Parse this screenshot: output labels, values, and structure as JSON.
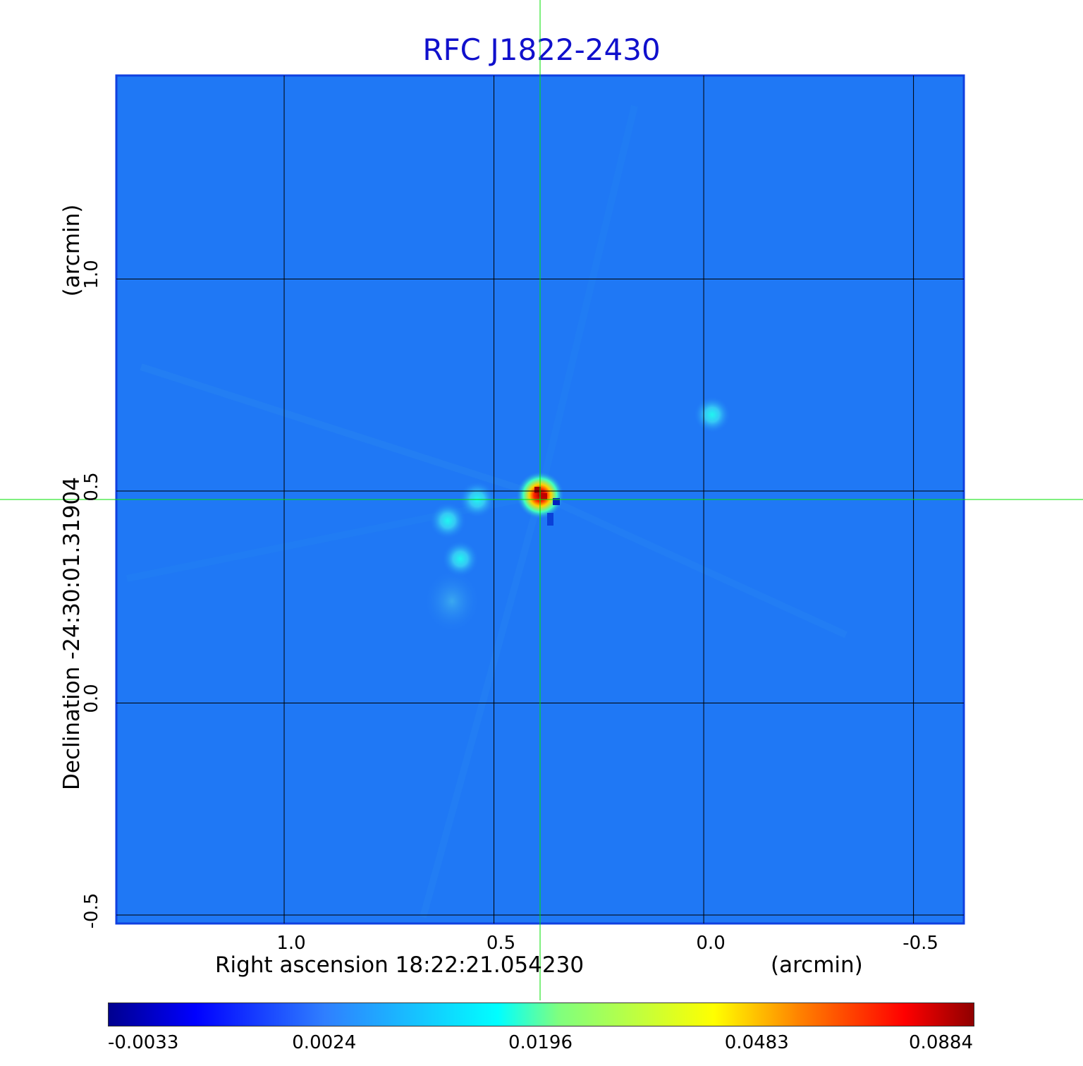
{
  "chart_data": {
    "type": "heatmap",
    "title": "RFC J1822-2430",
    "xlabel": "Right ascension  18:22:21.054230",
    "xunit": "(arcmin)",
    "ylabel": "Declination  -24:30:01.31904",
    "yunit": "(arcmin)",
    "x_ticks": [
      "1.0",
      "0.5",
      "0.0",
      "-0.5"
    ],
    "y_ticks": [
      "1.0",
      "0.5",
      "0.0",
      "-0.5"
    ],
    "xlim": [
      1.4,
      -0.62
    ],
    "ylim": [
      -0.52,
      1.48
    ],
    "grid": true,
    "colorbar": {
      "ticks": [
        "-0.0033",
        "0.0024",
        "0.0196",
        "0.0483",
        "0.0884"
      ],
      "colormap": "jet"
    },
    "crosshair": {
      "x": 0.39,
      "y": 0.48,
      "color": "#00e000"
    },
    "sources": [
      {
        "x": 0.39,
        "y": 0.49,
        "peak": 0.0884
      },
      {
        "x": 0.54,
        "y": 0.48,
        "peak": 0.012
      },
      {
        "x": 0.61,
        "y": 0.43,
        "peak": 0.014
      },
      {
        "x": 0.58,
        "y": 0.34,
        "peak": 0.013
      },
      {
        "x": -0.02,
        "y": 0.68,
        "peak": 0.013
      },
      {
        "x": 0.6,
        "y": 0.24,
        "peak": 0.006
      }
    ]
  },
  "colors": {
    "title": "#1010cc",
    "background_field": "#1f78f5",
    "grid": "#000000",
    "crosshair": "#00e000"
  }
}
